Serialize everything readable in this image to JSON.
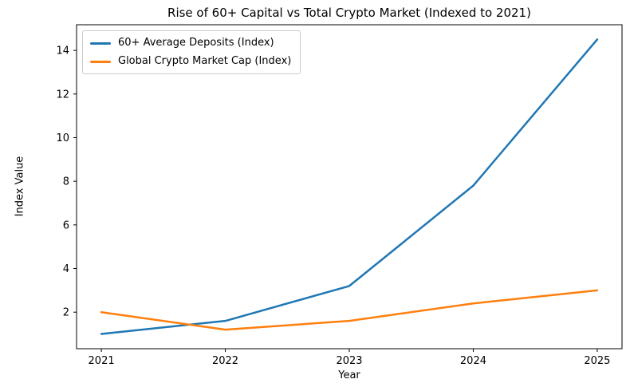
{
  "chart_data": {
    "type": "line",
    "title": "Rise of 60+ Capital vs Total Crypto Market (Indexed to 2021)",
    "xlabel": "Year",
    "ylabel": "Index Value",
    "x": [
      2021,
      2022,
      2023,
      2024,
      2025
    ],
    "series": [
      {
        "name": "60+ Average Deposits (Index)",
        "color": "#1f77b4",
        "values": [
          1.0,
          1.6,
          3.2,
          7.8,
          14.5
        ]
      },
      {
        "name": "Global Crypto Market Cap (Index)",
        "color": "#ff7f0e",
        "values": [
          2.0,
          1.2,
          1.6,
          2.4,
          3.0
        ]
      }
    ],
    "xticks": [
      2021,
      2022,
      2023,
      2024,
      2025
    ],
    "yticks": [
      2,
      4,
      6,
      8,
      10,
      12,
      14
    ],
    "xlim": [
      2020.8,
      2025.2
    ],
    "ylim": [
      0.325,
      15.175
    ],
    "grid": false,
    "legend_position": "upper-left",
    "background_color": "#ffffff",
    "spine_color": "#000000",
    "text_color": "#000000",
    "line_width": 2.5
  }
}
